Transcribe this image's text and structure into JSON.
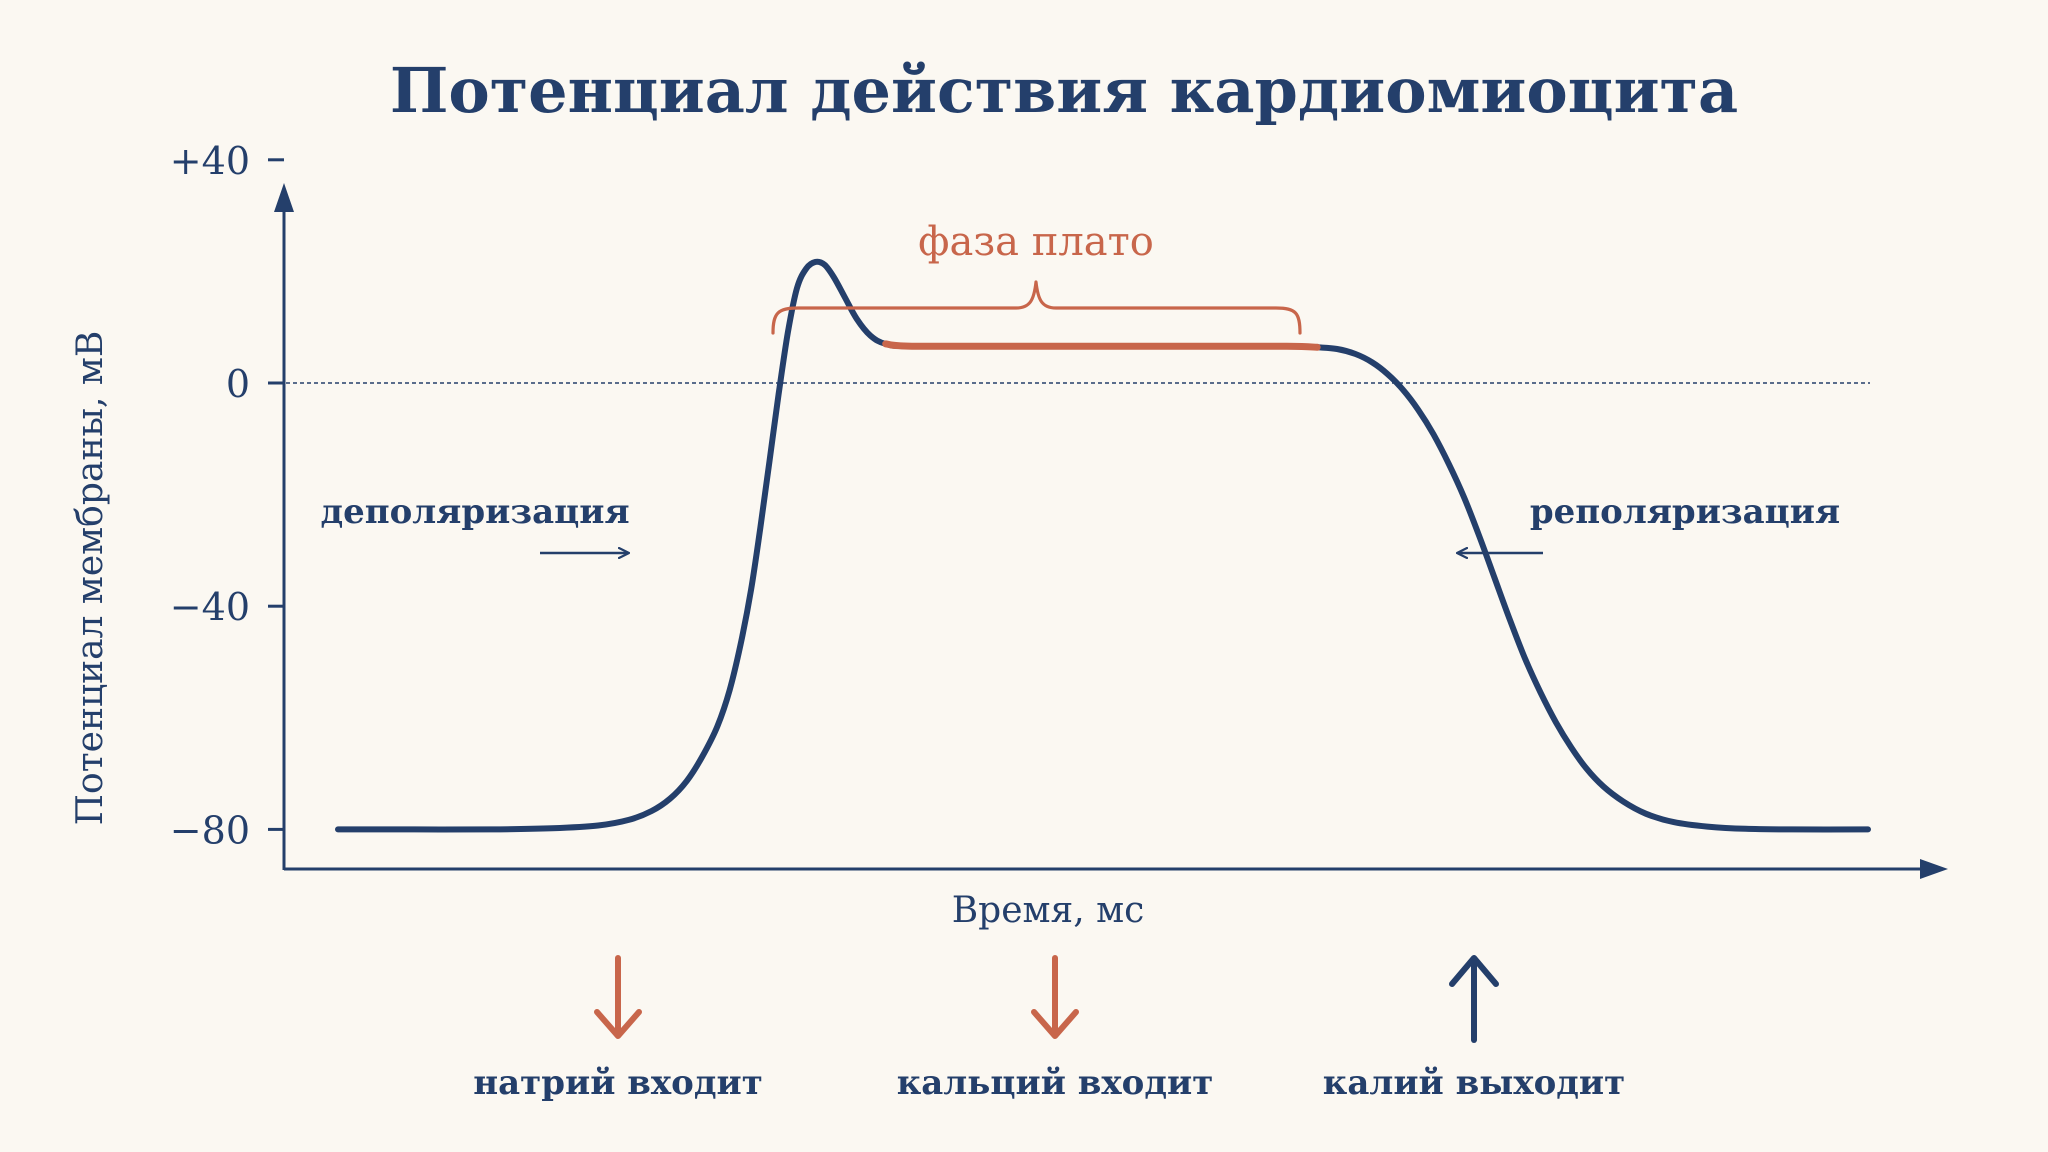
{
  "colors": {
    "background": "#fbf8f2",
    "navy": "#243f6b",
    "accent": "#c8664b"
  },
  "chart_data": {
    "type": "line",
    "title": "Потенциал действия кардиомиоцита",
    "xlabel": "Время, мс",
    "ylabel": "Потенциал мембраны, мВ",
    "yticks": [
      {
        "value": 40,
        "label": "+40"
      },
      {
        "value": 0,
        "label": "0"
      },
      {
        "value": -40,
        "label": "−40"
      },
      {
        "value": -80,
        "label": "−80"
      }
    ],
    "ylim": [
      -87,
      43
    ],
    "grid": false,
    "reference_line": {
      "y": 0,
      "style": "dashed"
    },
    "series": [
      {
        "values": [
          [
            0,
            -80
          ],
          [
            5,
            -80
          ],
          [
            10,
            -80
          ],
          [
            14,
            -79.8
          ],
          [
            17,
            -79.3
          ],
          [
            19,
            -78.3
          ],
          [
            20.5,
            -76.7
          ],
          [
            21.7,
            -74.5
          ],
          [
            22.8,
            -71.3
          ],
          [
            23.8,
            -67
          ],
          [
            24.8,
            -61.5
          ],
          [
            25.6,
            -55
          ],
          [
            26.3,
            -47
          ],
          [
            27,
            -37
          ],
          [
            27.6,
            -26
          ],
          [
            28.2,
            -14
          ],
          [
            28.8,
            -2
          ],
          [
            29.4,
            9
          ],
          [
            30,
            17
          ],
          [
            30.6,
            20.5
          ],
          [
            31.2,
            21.7
          ],
          [
            31.8,
            21.2
          ],
          [
            32.4,
            19
          ],
          [
            33.1,
            15.5
          ],
          [
            33.9,
            11.5
          ],
          [
            34.8,
            8.5
          ],
          [
            35.8,
            7
          ],
          [
            37.5,
            6.6
          ],
          [
            45,
            6.6
          ],
          [
            55,
            6.6
          ],
          [
            62,
            6.6
          ],
          [
            64,
            6.4
          ],
          [
            65.3,
            6.1
          ],
          [
            66.5,
            5.2
          ],
          [
            67.6,
            3.7
          ],
          [
            68.6,
            1.6
          ],
          [
            69.6,
            -1.2
          ],
          [
            70.6,
            -4.8
          ],
          [
            71.6,
            -9.2
          ],
          [
            72.6,
            -14.5
          ],
          [
            73.6,
            -20.5
          ],
          [
            74.6,
            -27.5
          ],
          [
            75.6,
            -35
          ],
          [
            76.6,
            -42.5
          ],
          [
            77.6,
            -49.5
          ],
          [
            78.6,
            -55.5
          ],
          [
            79.6,
            -60.8
          ],
          [
            80.6,
            -65.3
          ],
          [
            81.6,
            -69.1
          ],
          [
            82.7,
            -72.3
          ],
          [
            84,
            -75
          ],
          [
            85.5,
            -77.2
          ],
          [
            87.3,
            -78.7
          ],
          [
            89.5,
            -79.5
          ],
          [
            92,
            -79.9
          ],
          [
            95,
            -80
          ],
          [
            100,
            -80
          ]
        ]
      }
    ],
    "plateau_range": [
      35.8,
      65
    ],
    "annotations": {
      "plateau": "фаза плато",
      "depolarization": "деполяризация",
      "repolarization": "реполяризация"
    },
    "ion_flows": [
      {
        "label": "натрий входит",
        "direction": "down",
        "color": "accent"
      },
      {
        "label": "кальций входит",
        "direction": "down",
        "color": "accent"
      },
      {
        "label": "калий выходит",
        "direction": "up",
        "color": "navy"
      }
    ]
  }
}
